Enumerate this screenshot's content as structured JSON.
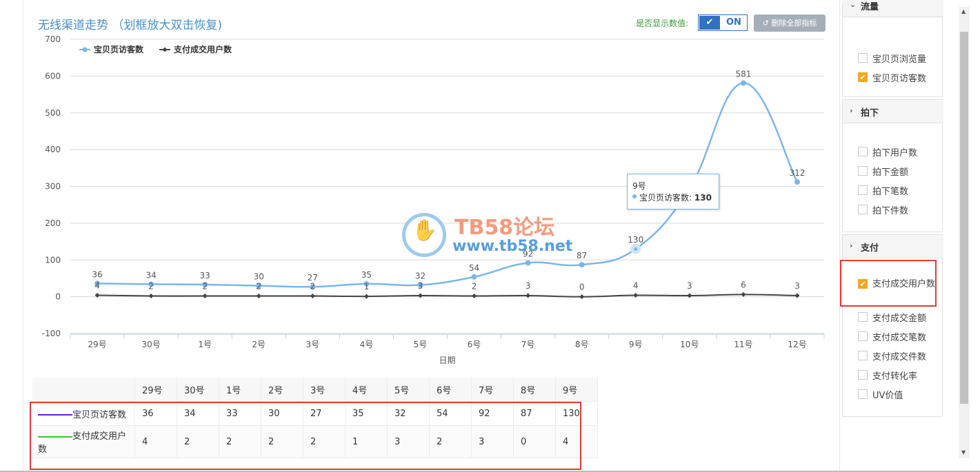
{
  "header": {
    "title": "无线渠道走势 （划框放大双击恢复)",
    "toggle_label": "是否显示数值:",
    "toggle_state": "ON",
    "delete_button": "删除全部指标"
  },
  "chart_data": {
    "type": "line",
    "x": [
      "29号",
      "30号",
      "1号",
      "2号",
      "3号",
      "4号",
      "5号",
      "6号",
      "7号",
      "8号",
      "9号",
      "10号",
      "11号",
      "12号"
    ],
    "series": [
      {
        "name": "宝贝页访客数",
        "color": "#7cb5ec",
        "values": [
          36,
          34,
          33,
          30,
          27,
          35,
          32,
          54,
          92,
          87,
          130,
          294,
          581,
          312
        ]
      },
      {
        "name": "支付成交用户数",
        "color": "#434348",
        "values": [
          4,
          2,
          2,
          2,
          2,
          1,
          3,
          2,
          3,
          0,
          4,
          3,
          6,
          3
        ]
      }
    ],
    "xlabel": "日期",
    "ylabel": "",
    "ylim": [
      -100,
      700
    ],
    "yticks": [
      700,
      600,
      500,
      400,
      300,
      200,
      100,
      0,
      -100
    ],
    "grid": true,
    "legend": "top-left"
  },
  "tooltip": {
    "x_label": "9号",
    "series_label": "宝贝页访客数",
    "value": "130"
  },
  "watermark": {
    "name": "TB58论坛",
    "url": "www.tb58.net"
  },
  "table": {
    "columns": [
      "29号",
      "30号",
      "1号",
      "2号",
      "3号",
      "4号",
      "5号",
      "6号",
      "7号",
      "8号",
      "9号"
    ],
    "rows": [
      {
        "label": "宝贝页访客数",
        "swatch": "#6a1bd6",
        "values": [
          "36",
          "34",
          "33",
          "30",
          "27",
          "35",
          "32",
          "54",
          "92",
          "87",
          "130"
        ]
      },
      {
        "label": "支付成交用户数",
        "swatch": "#3ac43a",
        "values": [
          "4",
          "2",
          "2",
          "2",
          "2",
          "1",
          "3",
          "2",
          "3",
          "0",
          "4"
        ]
      }
    ]
  },
  "sidebar": {
    "groups": [
      {
        "title": "流量",
        "items": [
          {
            "label": "宝贝页浏览量",
            "checked": false
          },
          {
            "label": "宝贝页访客数",
            "checked": true
          }
        ]
      },
      {
        "title": "拍下",
        "items": [
          {
            "label": "拍下用户数",
            "checked": false
          },
          {
            "label": "拍下金额",
            "checked": false
          },
          {
            "label": "拍下笔数",
            "checked": false
          },
          {
            "label": "拍下件数",
            "checked": false
          }
        ]
      },
      {
        "title": "支付",
        "items": [
          {
            "label": "支付成交用户数",
            "checked": true
          },
          {
            "label": "支付成交金额",
            "checked": false
          },
          {
            "label": "支付成交笔数",
            "checked": false
          },
          {
            "label": "支付成交件数",
            "checked": false
          },
          {
            "label": "支付转化率",
            "checked": false
          },
          {
            "label": "UV价值",
            "checked": false
          }
        ]
      }
    ]
  }
}
